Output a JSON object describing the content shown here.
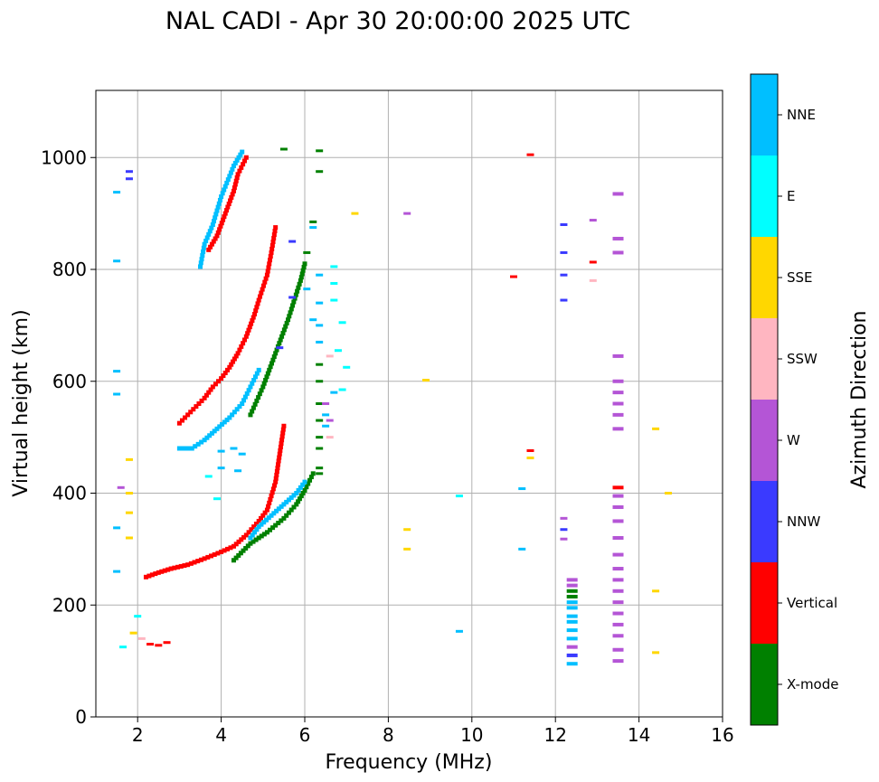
{
  "chart_data": {
    "type": "scatter",
    "title": "NAL CADI - Apr 30 20:00:00 2025 UTC",
    "xlabel": "Frequency (MHz)",
    "ylabel": "Virtual height (km)",
    "xlim": [
      1.0,
      16.0
    ],
    "ylim": [
      0,
      1120
    ],
    "xticks": [
      2,
      4,
      6,
      8,
      10,
      12,
      14,
      16
    ],
    "yticks": [
      0,
      200,
      400,
      600,
      800,
      1000
    ],
    "grid": true,
    "colorbar": {
      "label": "Azimuth Direction",
      "categories": [
        "X-mode",
        "Vertical",
        "NNW",
        "W",
        "SSW",
        "SSE",
        "E",
        "NNE"
      ],
      "colors": {
        "X-mode": "#008000",
        "Vertical": "#ff0000",
        "NNW": "#3a3aff",
        "W": "#b455d6",
        "SSW": "#ffb6c1",
        "SSE": "#ffd700",
        "E": "#00ffff",
        "NNE": "#00bfff"
      }
    },
    "traces": [
      {
        "name": "Vertical",
        "segments": [
          [
            [
              2.2,
              250
            ],
            [
              2.5,
              258
            ],
            [
              2.8,
              265
            ],
            [
              3.2,
              272
            ],
            [
              3.6,
              283
            ],
            [
              4.0,
              295
            ],
            [
              4.3,
              305
            ],
            [
              4.6,
              325
            ],
            [
              4.9,
              350
            ],
            [
              5.1,
              370
            ],
            [
              5.3,
              420
            ],
            [
              5.4,
              470
            ],
            [
              5.5,
              520
            ]
          ],
          [
            [
              3.0,
              525
            ],
            [
              3.2,
              540
            ],
            [
              3.4,
              555
            ],
            [
              3.6,
              570
            ],
            [
              3.8,
              590
            ],
            [
              4.0,
              605
            ],
            [
              4.2,
              625
            ],
            [
              4.4,
              650
            ],
            [
              4.6,
              680
            ],
            [
              4.8,
              720
            ],
            [
              4.9,
              745
            ],
            [
              5.1,
              790
            ],
            [
              5.2,
              830
            ],
            [
              5.3,
              875
            ]
          ],
          [
            [
              3.7,
              835
            ],
            [
              3.9,
              860
            ],
            [
              4.1,
              900
            ],
            [
              4.3,
              940
            ],
            [
              4.4,
              970
            ],
            [
              4.6,
              1000
            ]
          ]
        ]
      },
      {
        "name": "X-mode",
        "segments": [
          [
            [
              4.3,
              280
            ],
            [
              4.7,
              310
            ],
            [
              5.1,
              330
            ],
            [
              5.5,
              355
            ],
            [
              5.8,
              380
            ],
            [
              6.0,
              405
            ],
            [
              6.2,
              435
            ]
          ],
          [
            [
              4.7,
              540
            ],
            [
              5.0,
              590
            ],
            [
              5.3,
              650
            ],
            [
              5.6,
              710
            ],
            [
              5.9,
              780
            ],
            [
              6.0,
              810
            ]
          ]
        ]
      },
      {
        "name": "NNE",
        "segments": [
          [
            [
              3.0,
              480
            ],
            [
              3.3,
              480
            ],
            [
              3.6,
              495
            ],
            [
              3.9,
              515
            ],
            [
              4.2,
              535
            ],
            [
              4.5,
              560
            ],
            [
              4.7,
              590
            ],
            [
              4.9,
              620
            ]
          ],
          [
            [
              3.5,
              805
            ],
            [
              3.6,
              845
            ],
            [
              3.8,
              880
            ],
            [
              4.0,
              930
            ],
            [
              4.3,
              985
            ],
            [
              4.5,
              1010
            ]
          ],
          [
            [
              4.7,
              320
            ],
            [
              4.9,
              340
            ],
            [
              5.2,
              360
            ],
            [
              5.5,
              380
            ],
            [
              5.8,
              400
            ],
            [
              6.0,
              420
            ]
          ]
        ]
      }
    ],
    "column_marks": [
      {
        "freq": 12.4,
        "heights": [
          95,
          110,
          125,
          140,
          155,
          170,
          180,
          195,
          205,
          215,
          225,
          235,
          245
        ],
        "series": [
          "NNE",
          "NNW",
          "W",
          "NNE",
          "NNE",
          "NNE",
          "NNE",
          "NNE",
          "NNE",
          "X-mode",
          "X-mode",
          "W",
          "W"
        ]
      },
      {
        "freq": 13.5,
        "heights": [
          100,
          120,
          145,
          165,
          185,
          205,
          225,
          245,
          265,
          290,
          320,
          350,
          375,
          395,
          410,
          515,
          540,
          560,
          580,
          600,
          645,
          830,
          855,
          935
        ],
        "series": [
          "W",
          "W",
          "W",
          "W",
          "W",
          "W",
          "W",
          "W",
          "W",
          "W",
          "W",
          "W",
          "W",
          "W",
          "Vertical",
          "W",
          "W",
          "W",
          "W",
          "W",
          "W",
          "W",
          "W",
          "W"
        ]
      }
    ],
    "scattered_points": [
      {
        "series": "SSE",
        "freq": 14.4,
        "height": 515
      },
      {
        "series": "SSE",
        "freq": 14.7,
        "height": 400
      },
      {
        "series": "SSE",
        "freq": 14.4,
        "height": 225
      },
      {
        "series": "SSE",
        "freq": 14.4,
        "height": 115
      },
      {
        "series": "SSE",
        "freq": 8.45,
        "height": 335
      },
      {
        "series": "SSE",
        "freq": 8.45,
        "height": 300
      },
      {
        "series": "SSE",
        "freq": 8.9,
        "height": 602
      },
      {
        "series": "SSE",
        "freq": 7.2,
        "height": 900
      },
      {
        "series": "SSE",
        "freq": 11.4,
        "height": 463
      },
      {
        "series": "SSE",
        "freq": 1.8,
        "height": 400
      },
      {
        "series": "SSE",
        "freq": 1.8,
        "height": 365
      },
      {
        "series": "SSE",
        "freq": 1.8,
        "height": 320
      },
      {
        "series": "SSE",
        "freq": 1.8,
        "height": 460
      },
      {
        "series": "W",
        "freq": 8.45,
        "height": 900
      },
      {
        "series": "W",
        "freq": 12.9,
        "height": 888
      },
      {
        "series": "W",
        "freq": 12.2,
        "height": 355
      },
      {
        "series": "W",
        "freq": 12.2,
        "height": 318
      },
      {
        "series": "W",
        "freq": 1.6,
        "height": 410
      },
      {
        "series": "Vertical",
        "freq": 11.4,
        "height": 1005
      },
      {
        "series": "Vertical",
        "freq": 11.4,
        "height": 476
      },
      {
        "series": "Vertical",
        "freq": 11.0,
        "height": 787
      },
      {
        "series": "Vertical",
        "freq": 12.9,
        "height": 813
      },
      {
        "series": "SSW",
        "freq": 12.9,
        "height": 780
      },
      {
        "series": "NNW",
        "freq": 12.2,
        "height": 880
      },
      {
        "series": "NNW",
        "freq": 12.2,
        "height": 830
      },
      {
        "series": "NNW",
        "freq": 12.2,
        "height": 790
      },
      {
        "series": "NNW",
        "freq": 12.2,
        "height": 745
      },
      {
        "series": "NNW",
        "freq": 12.2,
        "height": 335
      },
      {
        "series": "NNE",
        "freq": 11.2,
        "height": 300
      },
      {
        "series": "NNE",
        "freq": 11.2,
        "height": 408
      },
      {
        "series": "NNE",
        "freq": 1.5,
        "height": 938
      },
      {
        "series": "NNE",
        "freq": 1.5,
        "height": 815
      },
      {
        "series": "NNE",
        "freq": 1.5,
        "height": 618
      },
      {
        "series": "NNE",
        "freq": 1.5,
        "height": 577
      },
      {
        "series": "NNE",
        "freq": 1.5,
        "height": 338
      },
      {
        "series": "NNE",
        "freq": 1.5,
        "height": 260
      },
      {
        "series": "NNE",
        "freq": 9.7,
        "height": 153
      },
      {
        "series": "E",
        "freq": 9.7,
        "height": 395
      },
      {
        "series": "NNW",
        "freq": 1.8,
        "height": 975
      },
      {
        "series": "NNW",
        "freq": 1.8,
        "height": 962
      },
      {
        "series": "Vertical",
        "freq": 2.3,
        "height": 130
      },
      {
        "series": "Vertical",
        "freq": 2.5,
        "height": 128
      },
      {
        "series": "Vertical",
        "freq": 2.7,
        "height": 133
      },
      {
        "series": "SSW",
        "freq": 2.1,
        "height": 140
      },
      {
        "series": "SSE",
        "freq": 1.9,
        "height": 150
      },
      {
        "series": "E",
        "freq": 1.65,
        "height": 125
      },
      {
        "series": "E",
        "freq": 2.0,
        "height": 180
      },
      {
        "series": "X-mode",
        "freq": 6.35,
        "height": 1012
      },
      {
        "series": "X-mode",
        "freq": 6.35,
        "height": 975
      },
      {
        "series": "X-mode",
        "freq": 6.2,
        "height": 885
      },
      {
        "series": "X-mode",
        "freq": 6.05,
        "height": 830
      },
      {
        "series": "X-mode",
        "freq": 6.35,
        "height": 630
      },
      {
        "series": "X-mode",
        "freq": 6.35,
        "height": 600
      },
      {
        "series": "X-mode",
        "freq": 6.35,
        "height": 560
      },
      {
        "series": "X-mode",
        "freq": 6.35,
        "height": 530
      },
      {
        "series": "X-mode",
        "freq": 6.35,
        "height": 500
      },
      {
        "series": "X-mode",
        "freq": 6.35,
        "height": 480
      },
      {
        "series": "X-mode",
        "freq": 6.35,
        "height": 445
      },
      {
        "series": "X-mode",
        "freq": 6.35,
        "height": 435
      },
      {
        "series": "X-mode",
        "freq": 5.5,
        "height": 1015
      },
      {
        "series": "NNE",
        "freq": 6.2,
        "height": 875
      },
      {
        "series": "NNE",
        "freq": 6.35,
        "height": 790
      },
      {
        "series": "NNE",
        "freq": 6.35,
        "height": 740
      },
      {
        "series": "NNE",
        "freq": 6.35,
        "height": 700
      },
      {
        "series": "NNE",
        "freq": 6.05,
        "height": 765
      },
      {
        "series": "NNE",
        "freq": 6.2,
        "height": 710
      },
      {
        "series": "NNE",
        "freq": 6.35,
        "height": 670
      },
      {
        "series": "NNE",
        "freq": 6.7,
        "height": 580
      },
      {
        "series": "NNE",
        "freq": 6.5,
        "height": 540
      },
      {
        "series": "NNE",
        "freq": 6.5,
        "height": 520
      },
      {
        "series": "E",
        "freq": 6.7,
        "height": 805
      },
      {
        "series": "E",
        "freq": 6.7,
        "height": 775
      },
      {
        "series": "E",
        "freq": 6.7,
        "height": 745
      },
      {
        "series": "E",
        "freq": 6.9,
        "height": 705
      },
      {
        "series": "E",
        "freq": 6.8,
        "height": 655
      },
      {
        "series": "E",
        "freq": 7.0,
        "height": 625
      },
      {
        "series": "E",
        "freq": 6.9,
        "height": 585
      },
      {
        "series": "SSW",
        "freq": 6.6,
        "height": 645
      },
      {
        "series": "SSW",
        "freq": 6.6,
        "height": 500
      },
      {
        "series": "W",
        "freq": 6.6,
        "height": 530
      },
      {
        "series": "W",
        "freq": 6.5,
        "height": 560
      },
      {
        "series": "NNW",
        "freq": 5.7,
        "height": 850
      },
      {
        "series": "NNW",
        "freq": 5.7,
        "height": 750
      },
      {
        "series": "NNW",
        "freq": 5.4,
        "height": 660
      },
      {
        "series": "E",
        "freq": 3.9,
        "height": 390
      },
      {
        "series": "E",
        "freq": 3.7,
        "height": 430
      },
      {
        "series": "NNE",
        "freq": 4.0,
        "height": 475
      },
      {
        "series": "NNE",
        "freq": 4.3,
        "height": 480
      },
      {
        "series": "NNE",
        "freq": 4.5,
        "height": 470
      },
      {
        "series": "NNE",
        "freq": 4.4,
        "height": 440
      },
      {
        "series": "NNE",
        "freq": 4.0,
        "height": 445
      }
    ]
  }
}
